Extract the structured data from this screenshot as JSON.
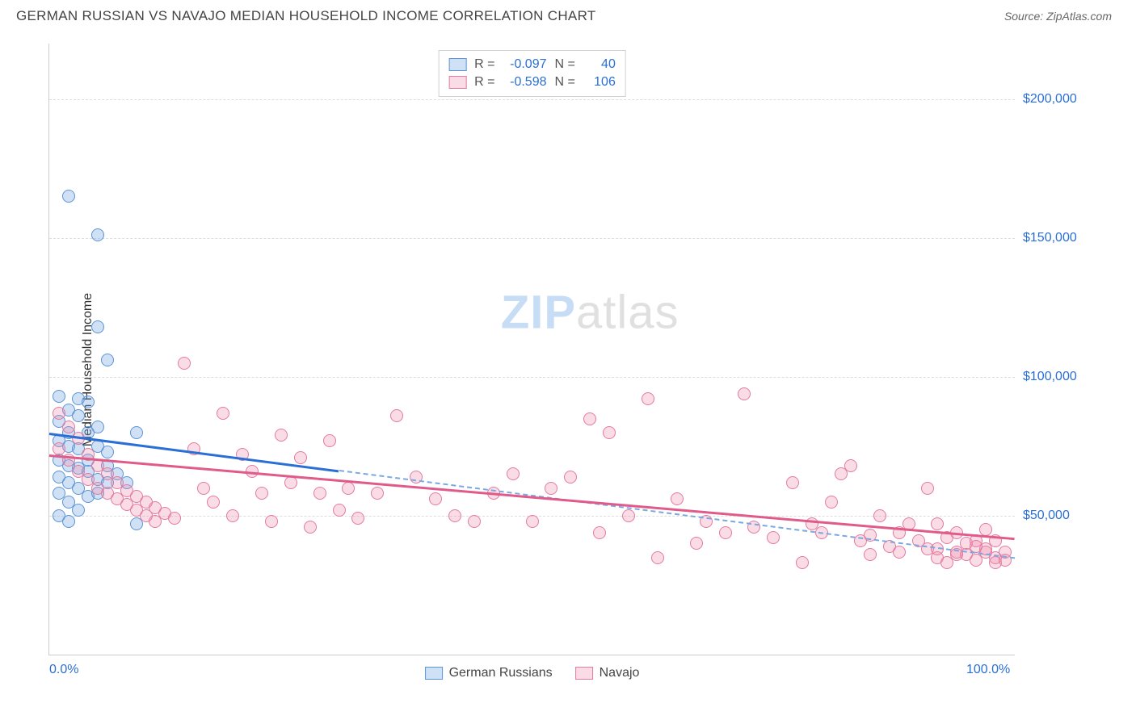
{
  "header": {
    "title": "GERMAN RUSSIAN VS NAVAJO MEDIAN HOUSEHOLD INCOME CORRELATION CHART",
    "source_label": "Source: ",
    "source_value": "ZipAtlas.com"
  },
  "watermark": {
    "zip": "ZIP",
    "atlas": "atlas"
  },
  "chart": {
    "type": "scatter",
    "ylabel": "Median Household Income",
    "background_color": "#ffffff",
    "grid_color": "#dddddd",
    "border_color": "#cccccc",
    "xlim": [
      0,
      100
    ],
    "ylim": [
      0,
      220000
    ],
    "xticks": [
      {
        "value": 0,
        "label": "0.0%"
      },
      {
        "value": 100,
        "label": "100.0%"
      }
    ],
    "yticks": [
      {
        "value": 50000,
        "label": "$50,000"
      },
      {
        "value": 100000,
        "label": "$100,000"
      },
      {
        "value": 150000,
        "label": "$150,000"
      },
      {
        "value": 200000,
        "label": "$200,000"
      }
    ],
    "ytick_color": "#2a6fd6",
    "xtick_color": "#2a6fd6",
    "marker_radius": 8,
    "marker_border_width": 1.5,
    "series": [
      {
        "id": "german_russians",
        "label": "German Russians",
        "fill": "rgba(120,170,230,0.35)",
        "stroke": "#5a94d8",
        "trend_color": "#2a6fd6",
        "trend_dash_color": "#7aa8e0",
        "R": "-0.097",
        "N": "40",
        "trend": {
          "x0": 0,
          "y0": 80000,
          "x_solid_end": 30,
          "x1": 100,
          "y1": 35000
        },
        "points": [
          [
            2,
            165000
          ],
          [
            5,
            151000
          ],
          [
            5,
            118000
          ],
          [
            6,
            106000
          ],
          [
            1,
            93000
          ],
          [
            3,
            92000
          ],
          [
            4,
            91000
          ],
          [
            2,
            88000
          ],
          [
            3,
            86000
          ],
          [
            1,
            84000
          ],
          [
            5,
            82000
          ],
          [
            2,
            80000
          ],
          [
            4,
            80000
          ],
          [
            9,
            80000
          ],
          [
            1,
            77000
          ],
          [
            2,
            75000
          ],
          [
            3,
            74000
          ],
          [
            6,
            73000
          ],
          [
            1,
            70000
          ],
          [
            2,
            68000
          ],
          [
            3,
            67000
          ],
          [
            4,
            66000
          ],
          [
            1,
            64000
          ],
          [
            5,
            63000
          ],
          [
            2,
            62000
          ],
          [
            6,
            62000
          ],
          [
            3,
            60000
          ],
          [
            1,
            58000
          ],
          [
            4,
            57000
          ],
          [
            2,
            55000
          ],
          [
            7,
            65000
          ],
          [
            8,
            62000
          ],
          [
            5,
            75000
          ],
          [
            6,
            68000
          ],
          [
            3,
            52000
          ],
          [
            9,
            47000
          ],
          [
            1,
            50000
          ],
          [
            2,
            48000
          ],
          [
            4,
            70000
          ],
          [
            5,
            58000
          ]
        ]
      },
      {
        "id": "navajo",
        "label": "Navajo",
        "fill": "rgba(235,140,170,0.30)",
        "stroke": "#e47aa0",
        "trend_color": "#e05a8a",
        "R": "-0.598",
        "N": "106",
        "trend": {
          "x0": 0,
          "y0": 72000,
          "x_solid_end": 100,
          "x1": 100,
          "y1": 42000
        },
        "points": [
          [
            1,
            87000
          ],
          [
            2,
            82000
          ],
          [
            3,
            78000
          ],
          [
            1,
            74000
          ],
          [
            4,
            72000
          ],
          [
            2,
            70000
          ],
          [
            5,
            68000
          ],
          [
            3,
            66000
          ],
          [
            6,
            65000
          ],
          [
            4,
            63000
          ],
          [
            7,
            62000
          ],
          [
            5,
            60000
          ],
          [
            8,
            59000
          ],
          [
            6,
            58000
          ],
          [
            9,
            57000
          ],
          [
            7,
            56000
          ],
          [
            10,
            55000
          ],
          [
            8,
            54000
          ],
          [
            11,
            53000
          ],
          [
            9,
            52000
          ],
          [
            12,
            51000
          ],
          [
            10,
            50000
          ],
          [
            13,
            49000
          ],
          [
            11,
            48000
          ],
          [
            14,
            105000
          ],
          [
            15,
            74000
          ],
          [
            16,
            60000
          ],
          [
            17,
            55000
          ],
          [
            18,
            87000
          ],
          [
            19,
            50000
          ],
          [
            20,
            72000
          ],
          [
            21,
            66000
          ],
          [
            22,
            58000
          ],
          [
            23,
            48000
          ],
          [
            24,
            79000
          ],
          [
            25,
            62000
          ],
          [
            26,
            71000
          ],
          [
            27,
            46000
          ],
          [
            28,
            58000
          ],
          [
            29,
            77000
          ],
          [
            30,
            52000
          ],
          [
            31,
            60000
          ],
          [
            32,
            49000
          ],
          [
            34,
            58000
          ],
          [
            36,
            86000
          ],
          [
            38,
            64000
          ],
          [
            40,
            56000
          ],
          [
            42,
            50000
          ],
          [
            44,
            48000
          ],
          [
            46,
            58000
          ],
          [
            48,
            65000
          ],
          [
            50,
            48000
          ],
          [
            52,
            60000
          ],
          [
            54,
            64000
          ],
          [
            56,
            85000
          ],
          [
            57,
            44000
          ],
          [
            58,
            80000
          ],
          [
            60,
            50000
          ],
          [
            62,
            92000
          ],
          [
            63,
            35000
          ],
          [
            65,
            56000
          ],
          [
            67,
            40000
          ],
          [
            68,
            48000
          ],
          [
            70,
            44000
          ],
          [
            72,
            94000
          ],
          [
            73,
            46000
          ],
          [
            75,
            42000
          ],
          [
            77,
            62000
          ],
          [
            78,
            33000
          ],
          [
            79,
            47000
          ],
          [
            80,
            44000
          ],
          [
            81,
            55000
          ],
          [
            82,
            65000
          ],
          [
            83,
            68000
          ],
          [
            84,
            41000
          ],
          [
            85,
            36000
          ],
          [
            86,
            50000
          ],
          [
            87,
            39000
          ],
          [
            88,
            44000
          ],
          [
            89,
            47000
          ],
          [
            90,
            41000
          ],
          [
            91,
            38000
          ],
          [
            91,
            60000
          ],
          [
            92,
            35000
          ],
          [
            92,
            47000
          ],
          [
            93,
            42000
          ],
          [
            93,
            33000
          ],
          [
            94,
            37000
          ],
          [
            94,
            44000
          ],
          [
            95,
            40000
          ],
          [
            95,
            36000
          ],
          [
            96,
            41000
          ],
          [
            96,
            34000
          ],
          [
            97,
            37000
          ],
          [
            97,
            38000
          ],
          [
            97,
            45000
          ],
          [
            98,
            35000
          ],
          [
            98,
            41000
          ],
          [
            98,
            33000
          ],
          [
            99,
            37000
          ],
          [
            99,
            34000
          ],
          [
            92,
            38000
          ],
          [
            94,
            36000
          ],
          [
            96,
            39000
          ],
          [
            88,
            37000
          ],
          [
            85,
            43000
          ]
        ]
      }
    ],
    "legend_top": {
      "r_label": "R =",
      "n_label": "N ="
    },
    "legend_bottom_labels": [
      "German Russians",
      "Navajo"
    ]
  }
}
